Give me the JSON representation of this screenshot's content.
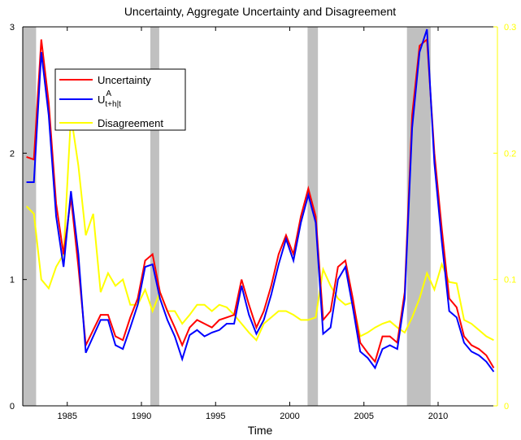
{
  "chart_data": {
    "type": "line",
    "title": "Uncertainty, Aggregate Uncertainty and Disagreement",
    "x_label": "Time",
    "x": [
      1982.25,
      1982.75,
      1983.25,
      1983.75,
      1984.25,
      1984.75,
      1985.25,
      1985.75,
      1986.25,
      1986.75,
      1987.25,
      1987.75,
      1988.25,
      1988.75,
      1989.25,
      1989.75,
      1990.25,
      1990.75,
      1991.25,
      1991.75,
      1992.25,
      1992.75,
      1993.25,
      1993.75,
      1994.25,
      1994.75,
      1995.25,
      1995.75,
      1996.25,
      1996.75,
      1997.25,
      1997.75,
      1998.25,
      1998.75,
      1999.25,
      1999.75,
      2000.25,
      2000.75,
      2001.25,
      2001.75,
      2002.25,
      2002.75,
      2003.25,
      2003.75,
      2004.25,
      2004.75,
      2005.25,
      2005.75,
      2006.25,
      2006.75,
      2007.25,
      2007.75,
      2008.25,
      2008.75,
      2009.25,
      2009.75,
      2010.25,
      2010.75,
      2011.25,
      2011.75,
      2012.25,
      2012.75,
      2013.25,
      2013.75
    ],
    "xlim": [
      1982,
      2014
    ],
    "xticks": [
      1985,
      1990,
      1995,
      2000,
      2005,
      2010
    ],
    "ylim": [
      0,
      3
    ],
    "yticks": [
      0,
      1,
      2,
      3
    ],
    "y2lim": [
      0,
      0.3
    ],
    "y2ticks": [
      0,
      0.1,
      0.2,
      0.3
    ],
    "y2color": "#ffff00",
    "recessions": [
      [
        1982,
        1982.9
      ],
      [
        1990.6,
        1991.2
      ],
      [
        2001.2,
        2001.9
      ],
      [
        2007.9,
        2009.5
      ]
    ],
    "recession_color": "#c0c0c0",
    "series": [
      {
        "name": "Uncertainty",
        "color": "#ff0000",
        "values": [
          1.97,
          1.95,
          2.9,
          2.4,
          1.6,
          1.2,
          1.65,
          1.1,
          0.48,
          0.6,
          0.72,
          0.72,
          0.55,
          0.52,
          0.7,
          0.85,
          1.15,
          1.2,
          0.9,
          0.75,
          0.62,
          0.48,
          0.62,
          0.68,
          0.65,
          0.62,
          0.68,
          0.7,
          0.72,
          1.0,
          0.8,
          0.62,
          0.75,
          0.95,
          1.2,
          1.35,
          1.2,
          1.5,
          1.72,
          1.5,
          0.68,
          0.75,
          1.1,
          1.15,
          0.85,
          0.5,
          0.42,
          0.35,
          0.55,
          0.55,
          0.5,
          0.9,
          2.3,
          2.85,
          2.9,
          2.0,
          1.4,
          0.85,
          0.78,
          0.55,
          0.48,
          0.45,
          0.4,
          0.3
        ]
      },
      {
        "name": "U",
        "name_sup": "A",
        "name_sub": "t+h|t",
        "color": "#0000ff",
        "values": [
          1.77,
          1.77,
          2.8,
          2.3,
          1.5,
          1.1,
          1.7,
          1.2,
          0.42,
          0.55,
          0.68,
          0.68,
          0.48,
          0.45,
          0.62,
          0.8,
          1.1,
          1.12,
          0.85,
          0.68,
          0.55,
          0.37,
          0.56,
          0.6,
          0.55,
          0.58,
          0.6,
          0.65,
          0.65,
          0.95,
          0.72,
          0.57,
          0.68,
          0.88,
          1.12,
          1.32,
          1.15,
          1.45,
          1.67,
          1.45,
          0.57,
          0.62,
          1.0,
          1.1,
          0.78,
          0.43,
          0.38,
          0.3,
          0.45,
          0.48,
          0.45,
          0.85,
          2.2,
          2.8,
          2.98,
          1.92,
          1.3,
          0.75,
          0.7,
          0.5,
          0.43,
          0.4,
          0.35,
          0.27
        ]
      },
      {
        "name": "Disagreement",
        "color": "#ffff00",
        "axis": "y2",
        "values": [
          0.158,
          0.152,
          0.1,
          0.093,
          0.11,
          0.12,
          0.23,
          0.19,
          0.135,
          0.152,
          0.09,
          0.105,
          0.095,
          0.1,
          0.08,
          0.08,
          0.092,
          0.075,
          0.09,
          0.075,
          0.075,
          0.065,
          0.072,
          0.08,
          0.08,
          0.075,
          0.08,
          0.078,
          0.072,
          0.065,
          0.058,
          0.052,
          0.065,
          0.07,
          0.075,
          0.075,
          0.072,
          0.068,
          0.068,
          0.07,
          0.108,
          0.095,
          0.085,
          0.08,
          0.082,
          0.055,
          0.058,
          0.062,
          0.065,
          0.067,
          0.062,
          0.058,
          0.07,
          0.085,
          0.105,
          0.092,
          0.112,
          0.098,
          0.097,
          0.068,
          0.065,
          0.06,
          0.055,
          0.052
        ]
      }
    ]
  }
}
